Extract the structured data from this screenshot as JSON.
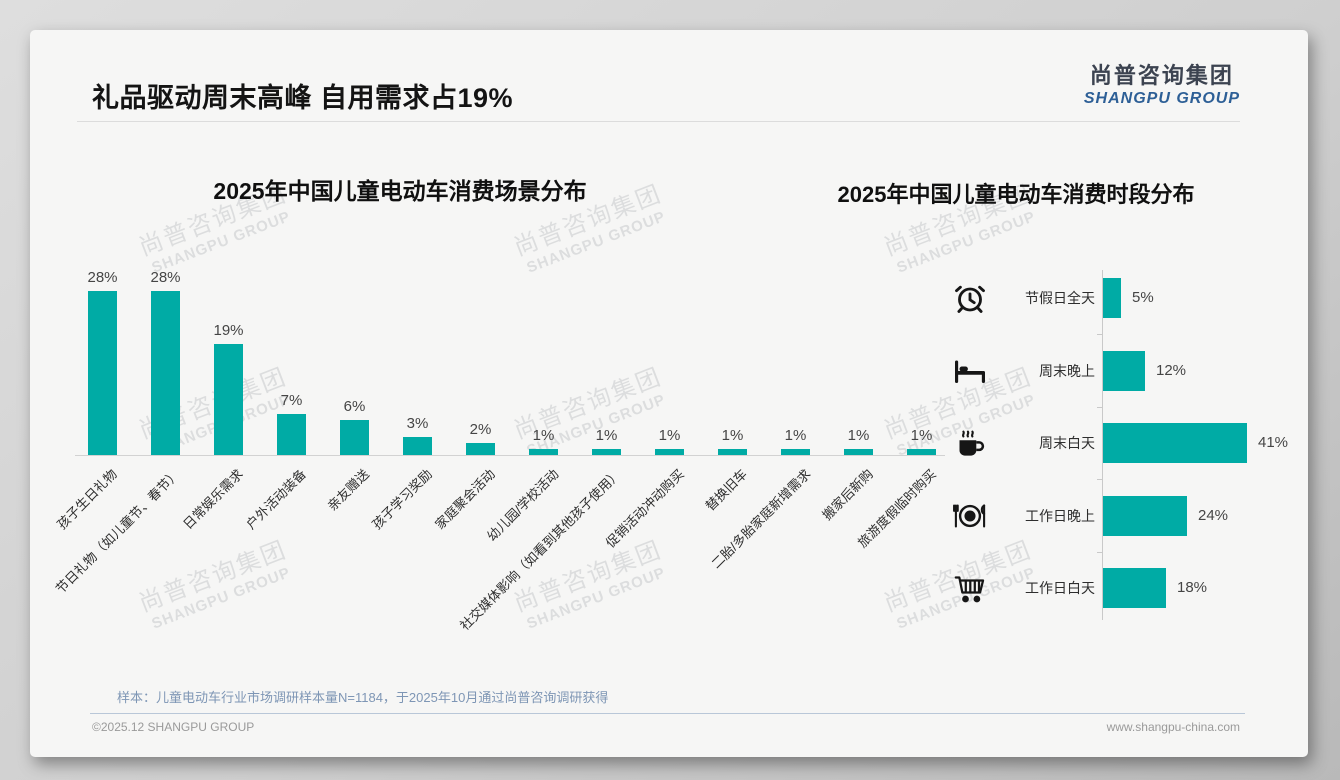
{
  "header": {
    "title": "礼品驱动周末高峰 自用需求占19%",
    "logo_cn": "尚普咨询集团",
    "logo_en": "SHANGPU GROUP"
  },
  "watermark": {
    "line1": "尚普咨询集团",
    "line2": "SHANGPU GROUP"
  },
  "chart_data": [
    {
      "type": "bar",
      "title": "2025年中国儿童电动车消费场景分布",
      "categories": [
        "孩子生日礼物",
        "节日礼物（如儿童节、春节）",
        "日常娱乐需求",
        "户外活动装备",
        "亲友赠送",
        "孩子学习奖励",
        "家庭聚会活动",
        "幼儿园/学校活动",
        "社交媒体影响（如看到其他孩子使用）",
        "促销活动冲动购买",
        "替换旧车",
        "二胎/多胎家庭新增需求",
        "搬家后新购",
        "旅游度假临时购买"
      ],
      "values": [
        28,
        28,
        19,
        7,
        6,
        3,
        2,
        1,
        1,
        1,
        1,
        1,
        1,
        1
      ],
      "unit": "%",
      "ylim": [
        0,
        30
      ],
      "grid": false,
      "legend": "none",
      "bar_color": "#00aba5",
      "value_labels": "above bars",
      "category_label_rotation": -45
    },
    {
      "type": "bar",
      "orientation": "horizontal",
      "title": "2025年中国儿童电动车消费时段分布",
      "categories": [
        "节假日全天",
        "周末晚上",
        "周末白天",
        "工作日晚上",
        "工作日白天"
      ],
      "values": [
        5,
        12,
        41,
        24,
        18
      ],
      "unit": "%",
      "xlim": [
        0,
        45
      ],
      "grid": false,
      "legend": "none",
      "bar_color": "#00aba5",
      "value_labels": "right of bars",
      "icons": [
        "alarm-clock",
        "bed",
        "coffee",
        "dining",
        "shopping-cart"
      ]
    }
  ],
  "footer": {
    "sample_note": "样本：儿童电动车行业市场调研样本量N=1184，于2025年10月通过尚普咨询调研获得",
    "copyright": "©2025.12 SHANGPU GROUP",
    "website": "www.shangpu-china.com"
  },
  "colors": {
    "accent_teal": "#00aba5",
    "logo_blue": "#2d5f96",
    "note_blue": "#7e96b5",
    "card_bg": "#f6f6f5"
  }
}
